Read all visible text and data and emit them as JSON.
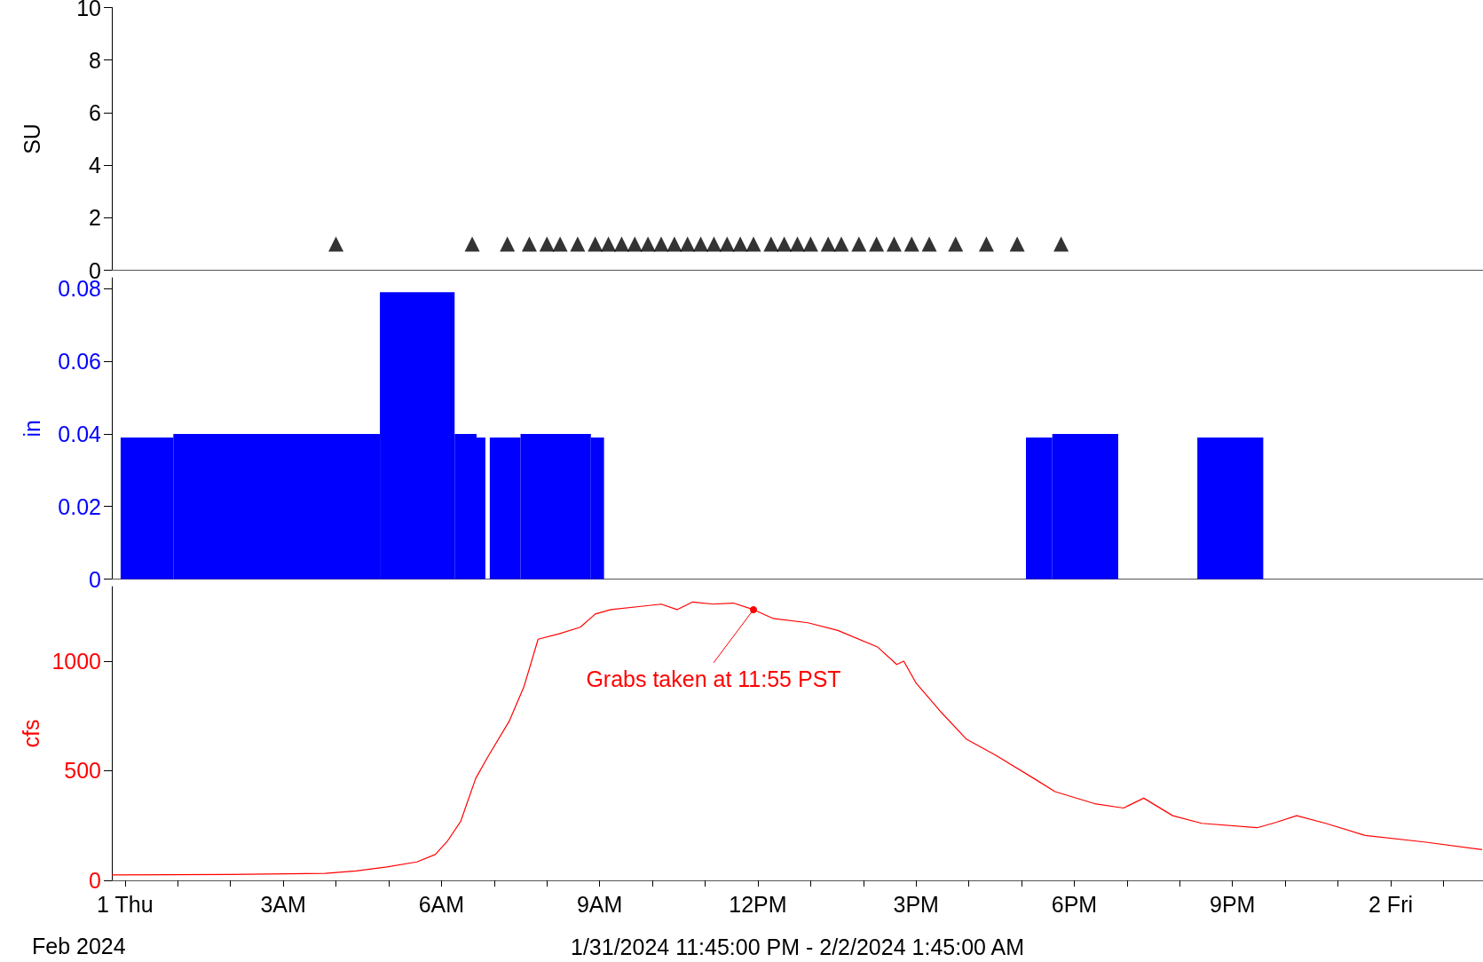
{
  "chart_data": [
    {
      "type": "scatter",
      "ylabel": "SU",
      "marker": "triangle",
      "tick_labels": "y",
      "xlim": [
        "2024-01-31T23:45",
        "2024-02-02T01:45"
      ],
      "ylim": [
        0,
        10
      ],
      "yticks": [
        0,
        2,
        4,
        6,
        8,
        10
      ],
      "series": [
        {
          "color": "#000000",
          "x": [
            "2024-02-01T04:00",
            "2024-02-01T06:35",
            "2024-02-01T07:15",
            "2024-02-01T07:40",
            "2024-02-01T08:00",
            "2024-02-01T08:15",
            "2024-02-01T08:35",
            "2024-02-01T08:55",
            "2024-02-01T09:10",
            "2024-02-01T09:25",
            "2024-02-01T09:40",
            "2024-02-01T09:55",
            "2024-02-01T10:10",
            "2024-02-01T10:25",
            "2024-02-01T10:40",
            "2024-02-01T10:55",
            "2024-02-01T11:10",
            "2024-02-01T11:25",
            "2024-02-01T11:40",
            "2024-02-01T11:55",
            "2024-02-01T12:15",
            "2024-02-01T12:30",
            "2024-02-01T12:45",
            "2024-02-01T13:00",
            "2024-02-01T13:20",
            "2024-02-01T13:35",
            "2024-02-01T13:55",
            "2024-02-01T14:15",
            "2024-02-01T14:35",
            "2024-02-01T14:55",
            "2024-02-01T15:15",
            "2024-02-01T15:45",
            "2024-02-01T16:20",
            "2024-02-01T16:55",
            "2024-02-01T17:45"
          ],
          "values": [
            1,
            1,
            1,
            1,
            1,
            1,
            1,
            1,
            1,
            1,
            1,
            1,
            1,
            1,
            1,
            1,
            1,
            1,
            1,
            1,
            1,
            1,
            1,
            1,
            1,
            1,
            1,
            1,
            1,
            1,
            1,
            1,
            1,
            1,
            1
          ]
        }
      ]
    },
    {
      "type": "histogram",
      "ylabel": "in",
      "tick_labels": "y",
      "color": "#0000ff",
      "xlim": [
        "2024-01-31T23:45",
        "2024-02-02T01:45"
      ],
      "ylim": [
        0,
        0.083
      ],
      "yticks": [
        0,
        0.02,
        0.04,
        0.06,
        0.08
      ],
      "bins": [
        "2024-01-31T23:55",
        "2024-02-01T00:55",
        "2024-02-01T04:50",
        "2024-02-01T06:15",
        "2024-02-01T06:40",
        "2024-02-01T06:50",
        "2024-02-01T06:55",
        "2024-02-01T07:30",
        "2024-02-01T08:50",
        "2024-02-01T09:05",
        "2024-02-01T17:05",
        "2024-02-01T17:35",
        "2024-02-01T18:50",
        "2024-02-01T20:20",
        "2024-02-01T21:35"
      ],
      "values": [
        0.039,
        0.04,
        0.079,
        0.04,
        0.039,
        0,
        0.039,
        0.04,
        0.039,
        0,
        0.039,
        0.04,
        0,
        0.039
      ]
    },
    {
      "type": "line",
      "ylabel": "cfs",
      "marker": "none",
      "xlabel": "1/31/2024 11:45:00 PM - 2/2/2024 1:45:00 AM",
      "annotations": [
        "Feb 2024",
        {
          "text": "Grabs taken at 11:55 PST",
          "x": "2024-02-01T11:55",
          "y": 1235
        }
      ],
      "xlim": [
        "2024-01-31T23:45",
        "2024-02-02T01:45"
      ],
      "ylim": [
        0,
        1340
      ],
      "yticks": [
        0,
        500,
        1000
      ],
      "xticks": [
        {
          "value": "2024-02-01T00:00",
          "label": "1 Thu"
        },
        {
          "value": "2024-02-01T01:00",
          "label": null
        },
        {
          "value": "2024-02-01T02:00",
          "label": null
        },
        {
          "value": "2024-02-01T03:00",
          "label": "3AM"
        },
        {
          "value": "2024-02-01T04:00",
          "label": null
        },
        {
          "value": "2024-02-01T05:00",
          "label": null
        },
        {
          "value": "2024-02-01T06:00",
          "label": "6AM"
        },
        {
          "value": "2024-02-01T07:00",
          "label": null
        },
        {
          "value": "2024-02-01T08:00",
          "label": null
        },
        {
          "value": "2024-02-01T09:00",
          "label": "9AM"
        },
        {
          "value": "2024-02-01T10:00",
          "label": null
        },
        {
          "value": "2024-02-01T11:00",
          "label": null
        },
        {
          "value": "2024-02-01T12:00",
          "label": "12PM"
        },
        {
          "value": "2024-02-01T13:00",
          "label": null
        },
        {
          "value": "2024-02-01T14:00",
          "label": null
        },
        {
          "value": "2024-02-01T15:00",
          "label": "3PM"
        },
        {
          "value": "2024-02-01T16:00",
          "label": null
        },
        {
          "value": "2024-02-01T17:00",
          "label": null
        },
        {
          "value": "2024-02-01T18:00",
          "label": "6PM"
        },
        {
          "value": "2024-02-01T19:00",
          "label": null
        },
        {
          "value": "2024-02-01T20:00",
          "label": null
        },
        {
          "value": "2024-02-01T21:00",
          "label": "9PM"
        },
        {
          "value": "2024-02-01T22:00",
          "label": null
        },
        {
          "value": "2024-02-01T23:00",
          "label": null
        },
        {
          "value": "2024-02-02T00:00",
          "label": "2 Fri"
        },
        {
          "value": "2024-02-02T01:00",
          "label": null
        }
      ],
      "series": [
        {
          "color": "#ff0000",
          "x": [
            "2024-01-31T23:45",
            "2024-02-01T01:58",
            "2024-02-01T03:48",
            "2024-02-01T04:23",
            "2024-02-01T04:58",
            "2024-02-01T05:32",
            "2024-02-01T05:53",
            "2024-02-01T06:07",
            "2024-02-01T06:22",
            "2024-02-01T06:39",
            "2024-02-01T06:53",
            "2024-02-01T07:17",
            "2024-02-01T07:34",
            "2024-02-01T07:50",
            "2024-02-01T08:14",
            "2024-02-01T08:38",
            "2024-02-01T08:55",
            "2024-02-01T09:13",
            "2024-02-01T09:47",
            "2024-02-01T10:10",
            "2024-02-01T10:28",
            "2024-02-01T10:46",
            "2024-02-01T11:09",
            "2024-02-01T11:32",
            "2024-02-01T11:55",
            "2024-02-01T12:17",
            "2024-02-01T12:57",
            "2024-02-01T13:31",
            "2024-02-01T14:16",
            "2024-02-01T14:38",
            "2024-02-01T14:46",
            "2024-02-01T15:00",
            "2024-02-01T15:29",
            "2024-02-01T15:57",
            "2024-02-01T16:31",
            "2024-02-01T17:16",
            "2024-02-01T17:38",
            "2024-02-01T18:23",
            "2024-02-01T18:56",
            "2024-02-01T19:19",
            "2024-02-01T19:52",
            "2024-02-01T20:25",
            "2024-02-01T21:28",
            "2024-02-01T21:50",
            "2024-02-01T22:13",
            "2024-02-01T22:46",
            "2024-02-01T23:31",
            "2024-02-02T00:38",
            "2024-02-02T01:44"
          ],
          "values": [
            25,
            27,
            32,
            43,
            61,
            84,
            118,
            180,
            270,
            465,
            565,
            725,
            885,
            1100,
            1125,
            1155,
            1215,
            1235,
            1250,
            1260,
            1235,
            1270,
            1260,
            1265,
            1235,
            1195,
            1175,
            1140,
            1065,
            985,
            1000,
            900,
            765,
            645,
            570,
            460,
            405,
            350,
            330,
            375,
            295,
            260,
            240,
            265,
            295,
            260,
            205,
            175,
            140
          ]
        }
      ]
    }
  ]
}
